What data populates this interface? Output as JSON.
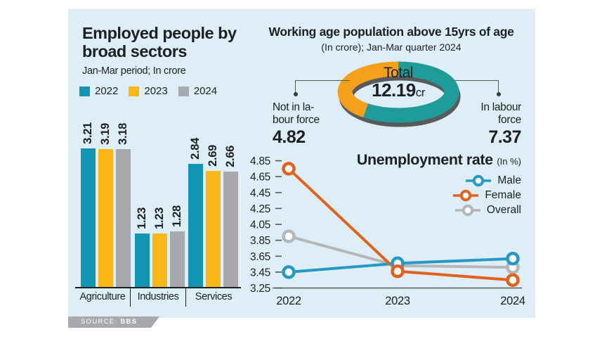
{
  "source": {
    "label": "SOURCE:",
    "value": "BBS"
  },
  "colors": {
    "panel_background": "#ddeef7",
    "text": "#1d1f21",
    "axis": "#58595b",
    "source_bar": "#a7a9ac",
    "donut_shadow": "#595a5c"
  },
  "chart_data": [
    {
      "id": "employment_bars",
      "type": "bar",
      "title": "Employed people by broad sectors",
      "subtitle": "Jan-Mar period; In crore",
      "categories": [
        "Agriculture",
        "Industries",
        "Services"
      ],
      "series": [
        {
          "name": "2022",
          "color": "#1295b4",
          "values": [
            3.21,
            1.23,
            2.84
          ]
        },
        {
          "name": "2023",
          "color": "#f9b614",
          "values": [
            3.19,
            1.23,
            2.69
          ]
        },
        {
          "name": "2024",
          "color": "#a7a9ac",
          "values": [
            3.18,
            1.28,
            2.66
          ]
        }
      ],
      "value_labels_shown": true,
      "legend_position": "top"
    },
    {
      "id": "working_age_donut",
      "type": "pie",
      "title": "Working age population above 15yrs of age",
      "subtitle": "(In crore);  Jan-Mar quarter 2024",
      "total_label": "Total",
      "total_value": "12.19",
      "total_unit": "cr",
      "slices": [
        {
          "label": "In labour force",
          "value": 7.37,
          "color": "#1f9c99"
        },
        {
          "label": "Not in labour force",
          "value": 4.82,
          "color": "#f5a01b"
        }
      ],
      "callouts": [
        {
          "side": "left",
          "lines": [
            "Not in la-",
            "bour force"
          ],
          "value": "4.82"
        },
        {
          "side": "right",
          "lines": [
            "In labour",
            "force"
          ],
          "value": "7.37"
        }
      ]
    },
    {
      "id": "unemployment_lines",
      "type": "line",
      "title": "Unemployment rate",
      "title_unit": "(In %)",
      "x": [
        "2022",
        "2023",
        "2024"
      ],
      "ylim": [
        3.25,
        4.85
      ],
      "yticks": [
        3.25,
        3.45,
        3.65,
        3.85,
        4.05,
        4.25,
        4.45,
        4.65,
        4.85
      ],
      "grid": false,
      "legend_position": "upper right",
      "series": [
        {
          "name": "Overall",
          "color": "#b5b6b7",
          "values": [
            3.9,
            3.53,
            3.51
          ]
        },
        {
          "name": "Male",
          "color": "#2699c4",
          "values": [
            3.45,
            3.56,
            3.62
          ]
        },
        {
          "name": "Female",
          "color": "#e2611b",
          "values": [
            4.75,
            3.46,
            3.35
          ]
        }
      ],
      "legend": [
        "Male",
        "Female",
        "Overall"
      ]
    }
  ]
}
